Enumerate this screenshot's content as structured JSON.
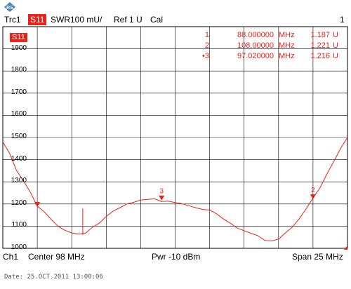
{
  "header": {
    "trace": "Trc1",
    "parameter": "S11",
    "format": "SWR",
    "scale": "100 mU/",
    "reference": "Ref 1 U",
    "cal": "Cal",
    "channel_number": "1"
  },
  "trace_tag": "S11",
  "y_axis": {
    "labels": [
      "1900",
      "1800",
      "1700",
      "1600",
      "1500",
      "1400",
      "1300",
      "1200",
      "1100",
      "1000"
    ]
  },
  "markers": [
    {
      "index": "1",
      "freq": "88.000000",
      "unit": "MHz",
      "value": "1.187",
      "value_unit": "U",
      "active": false
    },
    {
      "index": "2",
      "freq": "108.00000",
      "unit": "MHz",
      "value": "1.221",
      "value_unit": "U",
      "active": false
    },
    {
      "index": "•3",
      "freq": "97.020000",
      "unit": "MHz",
      "value": "1.216",
      "value_unit": "U",
      "active": true
    }
  ],
  "marker_labels": [
    "3",
    "2"
  ],
  "footer": {
    "channel": "Ch1",
    "center": "Center  98 MHz",
    "power": "Pwr  -10 dBm",
    "span": "Span  25 MHz"
  },
  "timestamp": "Date: 25.OCT.2011  13:00:06",
  "colors": {
    "trace": "#e8231a",
    "grid": "#000000",
    "logo": "#4a7fc1"
  },
  "chart_data": {
    "type": "line",
    "title": "",
    "xlabel": "",
    "ylabel": "",
    "xlim": [
      85.5,
      110.5
    ],
    "ylim": [
      1000,
      2000
    ],
    "grid": true,
    "series": [
      {
        "name": "S11",
        "x": [
          85.5,
          86.0,
          86.5,
          87.0,
          87.5,
          88.0,
          88.5,
          89.0,
          89.5,
          90.0,
          90.5,
          91.0,
          91.5,
          92.0,
          92.5,
          93.0,
          93.5,
          94.0,
          94.5,
          95.0,
          95.5,
          96.0,
          96.5,
          97.0,
          97.5,
          98.0,
          98.5,
          99.0,
          99.5,
          100.0,
          100.5,
          101.0,
          101.5,
          102.0,
          102.5,
          103.0,
          103.5,
          104.0,
          104.5,
          105.0,
          105.5,
          106.0,
          106.5,
          107.0,
          107.5,
          108.0,
          108.5,
          109.0,
          109.5,
          110.0,
          110.5
        ],
        "y": [
          1480,
          1420,
          1350,
          1300,
          1250,
          1187,
          1160,
          1130,
          1105,
          1085,
          1070,
          1065,
          1075,
          1095,
          1115,
          1140,
          1160,
          1180,
          1195,
          1205,
          1212,
          1216,
          1218,
          1216,
          1220,
          1212,
          1205,
          1200,
          1190,
          1180,
          1165,
          1150,
          1130,
          1110,
          1090,
          1075,
          1060,
          1050,
          1040,
          1035,
          1045,
          1070,
          1100,
          1140,
          1180,
          1221,
          1270,
          1330,
          1390,
          1450,
          1500
        ]
      }
    ],
    "markers": [
      {
        "label": "1",
        "x": 88.0,
        "y": 1187
      },
      {
        "label": "2",
        "x": 108.0,
        "y": 1221
      },
      {
        "label": "3",
        "x": 97.02,
        "y": 1216
      }
    ]
  }
}
